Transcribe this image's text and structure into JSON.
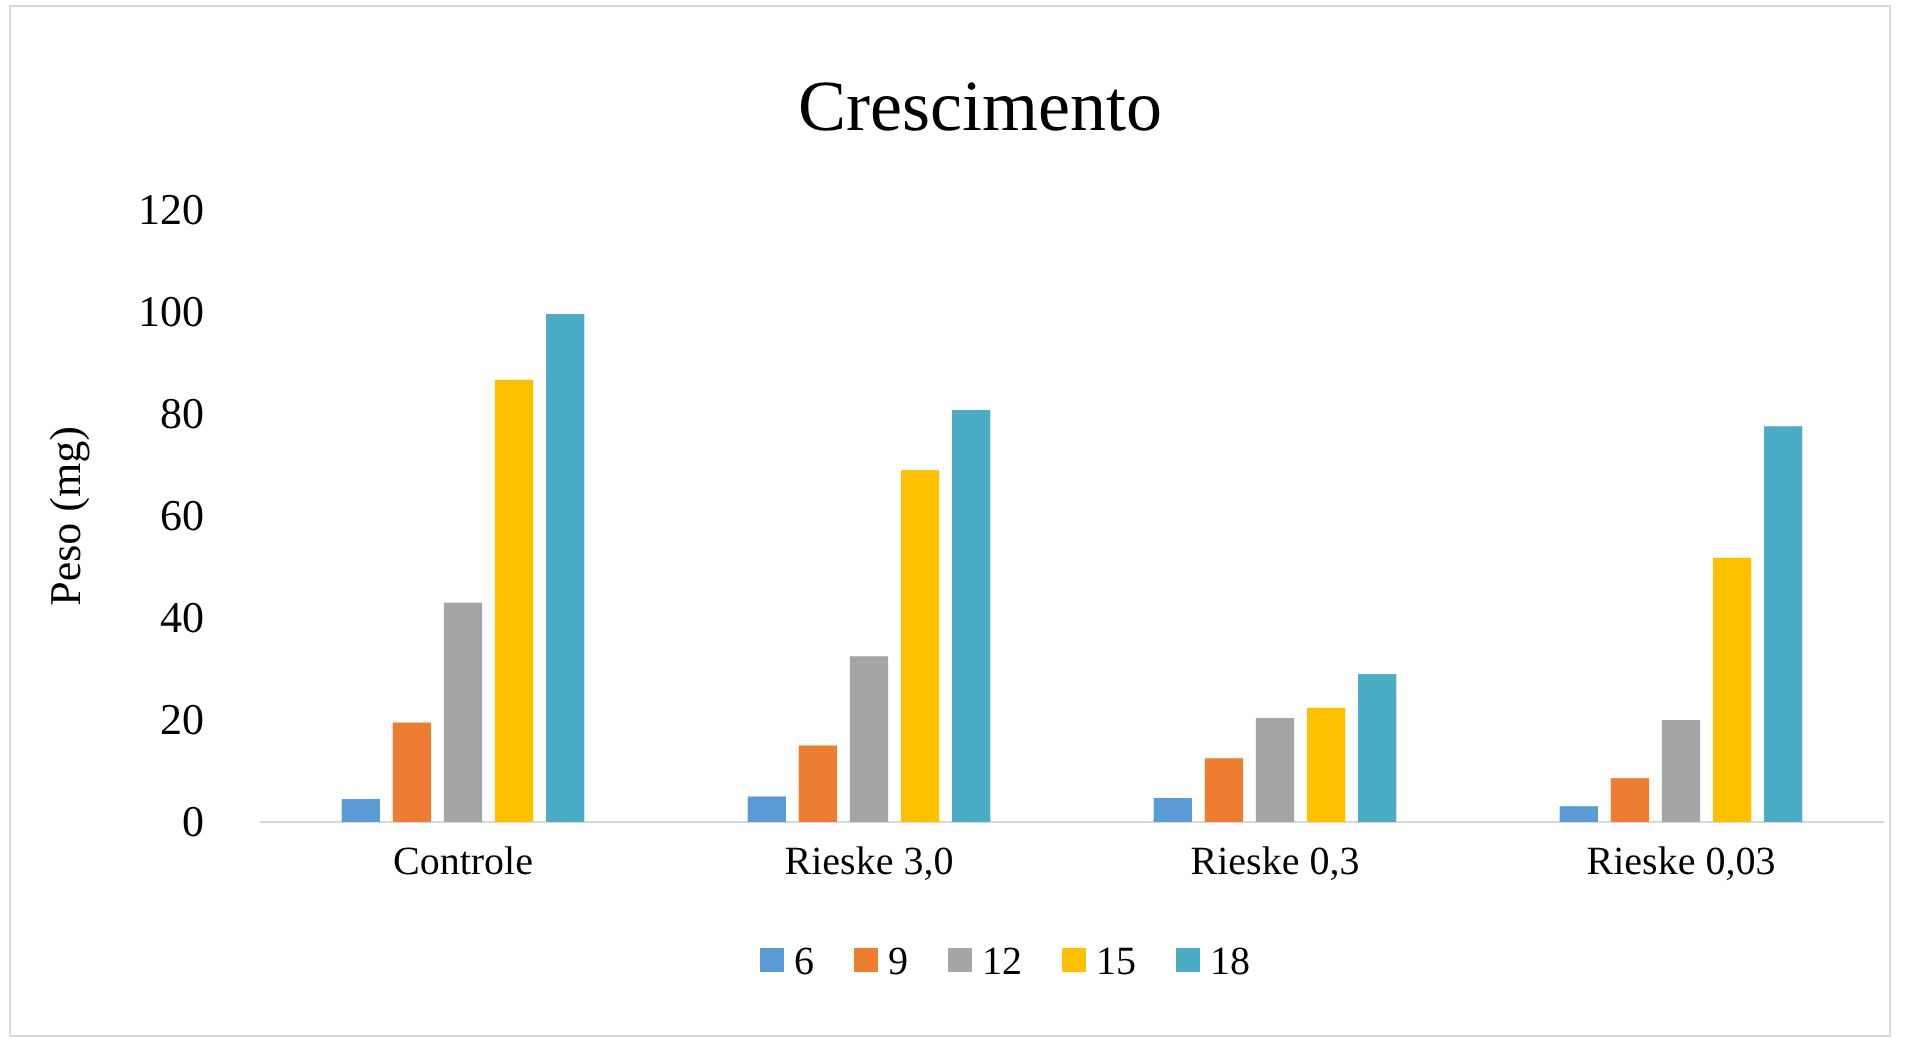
{
  "chart_data": {
    "type": "bar",
    "title": "Crescimento",
    "ylabel": "Peso (mg)",
    "categories": [
      "Controle",
      "Rieske 3,0",
      "Rieske 0,3",
      "Rieske 0,03"
    ],
    "series": [
      {
        "name": "6",
        "color": "#5b9bd5",
        "values": [
          4.5,
          5,
          4.7,
          3.1
        ]
      },
      {
        "name": "9",
        "color": "#ed7d31",
        "values": [
          19.5,
          15,
          12.5,
          8.6
        ]
      },
      {
        "name": "12",
        "color": "#a5a5a5",
        "values": [
          43,
          32.5,
          20.4,
          20
        ]
      },
      {
        "name": "15",
        "color": "#ffc000",
        "values": [
          86.7,
          69,
          22.4,
          51.8
        ]
      },
      {
        "name": "18",
        "color": "#4bacc6",
        "values": [
          99.6,
          80.8,
          29,
          77.6
        ]
      }
    ],
    "ylim": [
      0,
      120
    ],
    "yticks": [
      0,
      20,
      40,
      60,
      80,
      100,
      120
    ],
    "grid": false,
    "legend": "bottom"
  }
}
